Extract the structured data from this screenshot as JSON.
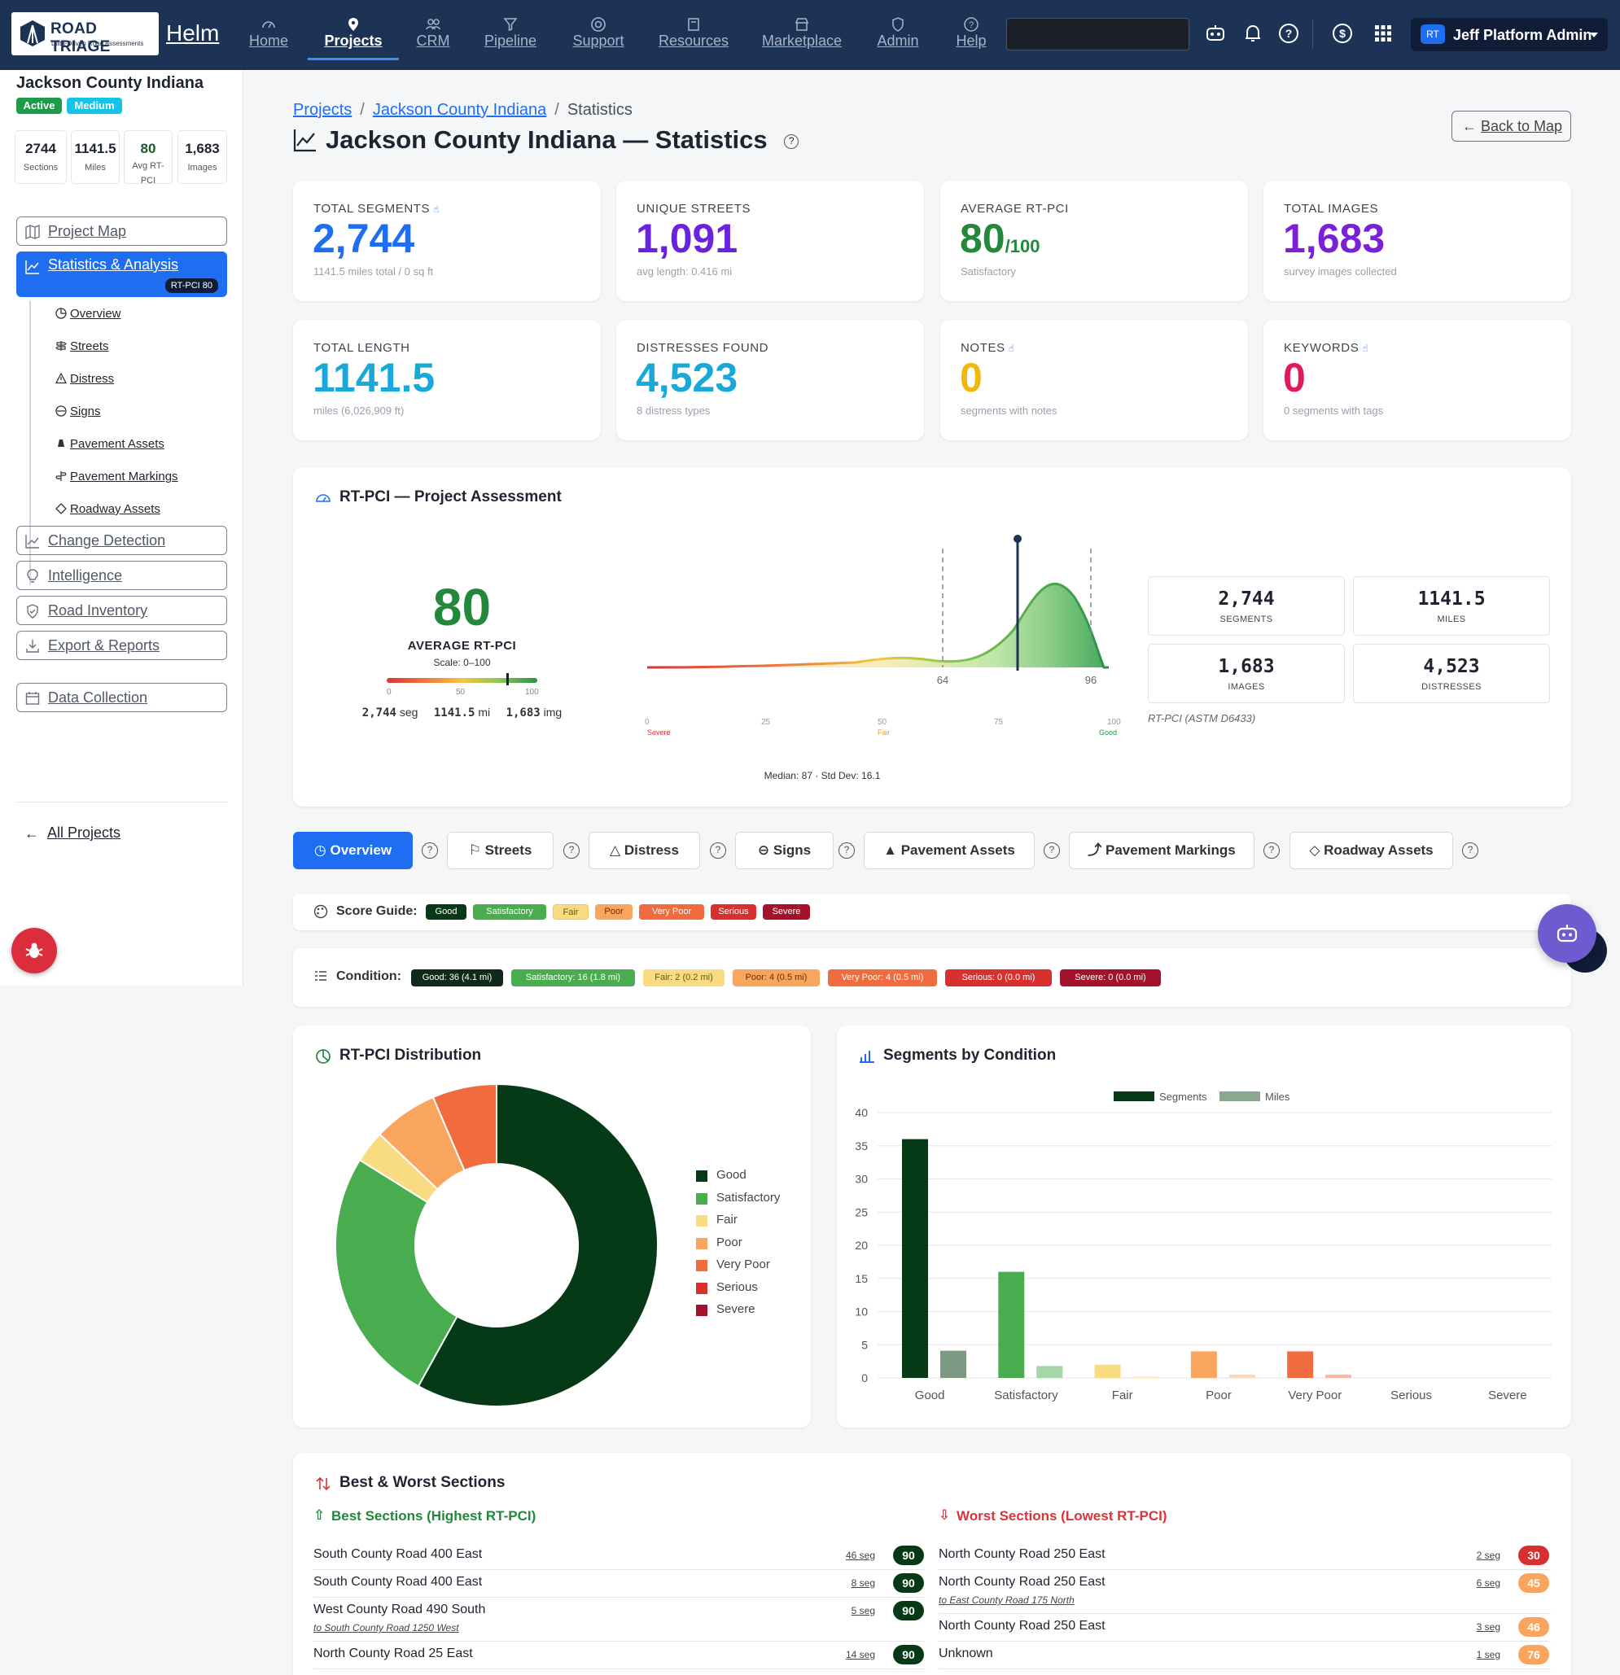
{
  "nav": {
    "brand_line1": "ROAD TRIAGE",
    "brand_line2": "Data-Driven Road Assessments",
    "app": "Helm",
    "items": [
      {
        "label": "Home"
      },
      {
        "label": "Projects"
      },
      {
        "label": "CRM"
      },
      {
        "label": "Pipeline"
      },
      {
        "label": "Support"
      },
      {
        "label": "Resources"
      },
      {
        "label": "Marketplace"
      },
      {
        "label": "Admin"
      },
      {
        "label": "Help"
      }
    ],
    "user_initials": "RT",
    "user_name": "Jeff Platform Admin"
  },
  "sidebar": {
    "project": "Jackson County Indiana",
    "status": "Active",
    "priority": "Medium",
    "stats": [
      {
        "value": "2744",
        "label": "Sections"
      },
      {
        "value": "1141.5",
        "label": "Miles"
      },
      {
        "value": "80",
        "label": "Avg RT-PCI"
      },
      {
        "value": "1,683",
        "label": "Images"
      }
    ],
    "project_map": "Project Map",
    "stats_analysis": "Statistics & Analysis",
    "rtpci_pill": "RT-PCI 80",
    "sub": [
      "Overview",
      "Streets",
      "Distress",
      "Signs",
      "Pavement Assets",
      "Pavement Markings",
      "Roadway Assets"
    ],
    "change_detection": "Change Detection",
    "intelligence": "Intelligence",
    "road_inventory": "Road Inventory",
    "export_reports": "Export & Reports",
    "data_collection": "Data Collection",
    "all_projects": "All Projects"
  },
  "breadcrumb": {
    "projects": "Projects",
    "county": "Jackson County Indiana",
    "current": "Statistics"
  },
  "page_title": "Jackson County Indiana — Statistics",
  "back_to_map": "Back to Map",
  "kpis": [
    {
      "label": "TOTAL SEGMENTS",
      "value": "2,744",
      "sub": "1141.5 miles total / 0 sq ft",
      "color": "#1f6ef2"
    },
    {
      "label": "UNIQUE STREETS",
      "value": "1,091",
      "sub": "avg length: 0.416 mi",
      "color": "#6b21e0"
    },
    {
      "label": "AVERAGE RT-PCI",
      "value": "80",
      "suffix": "/100",
      "sub": "Satisfactory",
      "color": "#22883a"
    },
    {
      "label": "TOTAL IMAGES",
      "value": "1,683",
      "sub": "survey images collected",
      "color": "#7a20d8"
    },
    {
      "label": "TOTAL LENGTH",
      "value": "1141.5",
      "sub": "miles (6,026,909 ft)",
      "color": "#18a9d8"
    },
    {
      "label": "DISTRESSES FOUND",
      "value": "4,523",
      "sub": "8 distress types",
      "color": "#18a9d8"
    },
    {
      "label": "NOTES",
      "value": "0",
      "sub": "segments with notes",
      "color": "#f1b70d"
    },
    {
      "label": "KEYWORDS",
      "value": "0",
      "sub": "0 segments with tags",
      "color": "#e01a5e"
    }
  ],
  "assessment": {
    "title": "RT-PCI — Project Assessment",
    "score": "80",
    "avg_label": "AVERAGE RT-PCI",
    "scale": "Scale: 0–100",
    "gauge_ticks": [
      "0",
      "50",
      "100"
    ],
    "segments": "2,744",
    "seg_unit": "seg",
    "miles": "1141.5",
    "mi_unit": "mi",
    "images": "1,683",
    "img_unit": "img",
    "boxes": [
      {
        "value": "2,744",
        "label": "SEGMENTS"
      },
      {
        "value": "1141.5",
        "label": "MILES"
      },
      {
        "value": "1,683",
        "label": "IMAGES"
      },
      {
        "value": "4,523",
        "label": "DISTRESSES"
      }
    ],
    "astm": "RT-PCI (ASTM D6433)",
    "median_line": "Median: 87 · Std Dev: 16.1",
    "marker": "80",
    "p_low": "64",
    "p_high": "96",
    "axis": [
      "0",
      "25",
      "50",
      "75",
      "100"
    ],
    "axis_lbl_severe": "Severe",
    "axis_lbl_fair": "Fair",
    "axis_lbl_good": "Good"
  },
  "tabs": [
    "Overview",
    "Streets",
    "Distress",
    "Signs",
    "Pavement Assets",
    "Pavement Markings",
    "Roadway Assets"
  ],
  "score_guide": {
    "label": "Score Guide:",
    "items": [
      {
        "t": "Good",
        "bg": "#063a17",
        "fg": "#fff"
      },
      {
        "t": "Satisfactory",
        "bg": "#49ad4f",
        "fg": "#fff"
      },
      {
        "t": "Fair",
        "bg": "#f9dc82",
        "fg": "#6a5410"
      },
      {
        "t": "Poor",
        "bg": "#f9a55d",
        "fg": "#6a2e05"
      },
      {
        "t": "Very Poor",
        "bg": "#f06b3d",
        "fg": "#fff"
      },
      {
        "t": "Serious",
        "bg": "#d82f2f",
        "fg": "#fff"
      },
      {
        "t": "Severe",
        "bg": "#a3122a",
        "fg": "#fff"
      }
    ]
  },
  "condition": {
    "label": "Condition:",
    "items": [
      "Good: 36 (4.1 mi)",
      "Satisfactory: 16 (1.8 mi)",
      "Fair: 2 (0.2 mi)",
      "Poor: 4 (0.5 mi)",
      "Very Poor: 4 (0.5 mi)",
      "Serious: 0 (0.0 mi)",
      "Severe: 0 (0.0 mi)"
    ]
  },
  "dist_title": "RT-PCI Distribution",
  "seg_title": "Segments by Condition",
  "chart_data": [
    {
      "type": "pie",
      "title": "RT-PCI Distribution",
      "categories": [
        "Good",
        "Satisfactory",
        "Fair",
        "Poor",
        "Very Poor",
        "Serious",
        "Severe"
      ],
      "values": [
        36,
        16,
        2,
        4,
        4,
        0,
        0
      ],
      "colors": [
        "#063a17",
        "#49ad4f",
        "#f9dc82",
        "#f9a55d",
        "#f06b3d",
        "#d82f2f",
        "#a3122a"
      ],
      "legend": "right"
    },
    {
      "type": "bar",
      "title": "Segments by Condition",
      "categories": [
        "Good",
        "Satisfactory",
        "Fair",
        "Poor",
        "Very Poor",
        "Serious",
        "Severe"
      ],
      "series": [
        {
          "name": "Segments",
          "values": [
            36,
            16,
            2,
            4,
            4,
            0,
            0
          ]
        },
        {
          "name": "Miles",
          "values": [
            4.1,
            1.8,
            0.2,
            0.5,
            0.5,
            0,
            0
          ]
        }
      ],
      "ylim": [
        0,
        40
      ],
      "yticks": [
        0,
        5,
        10,
        15,
        20,
        25,
        30,
        35,
        40
      ],
      "legend": "top",
      "grid": true
    }
  ],
  "bw": {
    "title": "Best & Worst Sections",
    "best_title": "Best Sections (Highest RT-PCI)",
    "worst_title": "Worst Sections (Lowest RT-PCI)",
    "best": [
      {
        "name": "South County Road 400 East",
        "seg": "46 seg",
        "score": "90"
      },
      {
        "name": "South County Road 400 East",
        "seg": "8 seg",
        "score": "90"
      },
      {
        "name": "West County Road 490 South",
        "sub": "to South County Road 1250 West",
        "seg": "5 seg",
        "score": "90"
      },
      {
        "name": "North County Road 25 East",
        "seg": "14 seg",
        "score": "90"
      }
    ],
    "worst": [
      {
        "name": "North County Road 250 East",
        "seg": "2 seg",
        "score": "30",
        "bg": "#d82f2f"
      },
      {
        "name": "North County Road 250 East",
        "sub": "to East County Road 175 North",
        "seg": "6 seg",
        "score": "45",
        "bg": "#f9a55d"
      },
      {
        "name": "North County Road 250 East",
        "seg": "3 seg",
        "score": "46",
        "bg": "#f9a55d"
      },
      {
        "name": "Unknown",
        "seg": "1 seg",
        "score": "76",
        "bg": "#f9a55d"
      }
    ]
  }
}
